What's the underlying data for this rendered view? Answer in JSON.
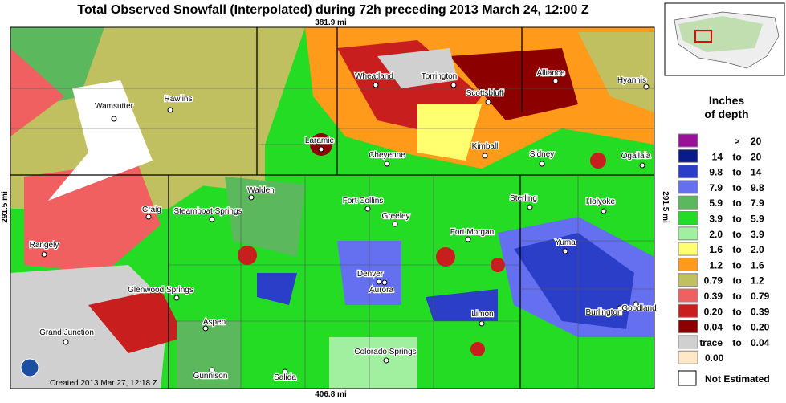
{
  "header": {
    "title": "Total Observed Snowfall (Interpolated) during 72h preceding 2013 March 24, 12:00 Z"
  },
  "map": {
    "top_scale": "381.9 mi",
    "bottom_scale": "406.8 mi",
    "left_scale": "291.5 mi",
    "right_scale": "291.5 mi",
    "created": "Created 2013 Mar 27, 12:18 Z",
    "cities": [
      "Wamsutter",
      "Rawlins",
      "Wheatland",
      "Torrington",
      "Alliance",
      "Hyannis",
      "Scottsbluff",
      "Laramie",
      "Cheyenne",
      "Kimball",
      "Sidney",
      "Ogallala",
      "Walden",
      "Fort Collins",
      "Craig",
      "Steamboat Springs",
      "Sterling",
      "Holyoke",
      "Greeley",
      "Fort Morgan",
      "Yuma",
      "Rangely",
      "Denver",
      "Aurora",
      "Glenwood Springs",
      "Burlington",
      "Goodland",
      "Limon",
      "Aspen",
      "Grand Junction",
      "Colorado Springs",
      "Gunnison",
      "Salida"
    ]
  },
  "legend": {
    "title": [
      "Inches",
      "of depth"
    ],
    "rows": [
      {
        "cells": [
          ">",
          "20"
        ],
        "color": "#9b109b"
      },
      {
        "cells": [
          "14",
          "to",
          "20"
        ],
        "color": "#0a1a8c"
      },
      {
        "cells": [
          "9.8",
          "to",
          "14"
        ],
        "color": "#2a3ec8"
      },
      {
        "cells": [
          "7.9",
          "to",
          "9.8"
        ],
        "color": "#6470f0"
      },
      {
        "cells": [
          "5.9",
          "to",
          "7.9"
        ],
        "color": "#5cb85c"
      },
      {
        "cells": [
          "3.9",
          "to",
          "5.9"
        ],
        "color": "#24dc24"
      },
      {
        "cells": [
          "2.0",
          "to",
          "3.9"
        ],
        "color": "#a0f0a0"
      },
      {
        "cells": [
          "1.6",
          "to",
          "2.0"
        ],
        "color": "#ffff70"
      },
      {
        "cells": [
          "1.2",
          "to",
          "1.6"
        ],
        "color": "#ff9a1a"
      },
      {
        "cells": [
          "0.79",
          "to",
          "1.2"
        ],
        "color": "#c0c060"
      },
      {
        "cells": [
          "0.39",
          "to",
          "0.79"
        ],
        "color": "#f06060"
      },
      {
        "cells": [
          "0.20",
          "to",
          "0.39"
        ],
        "color": "#c81e1e"
      },
      {
        "cells": [
          "0.04",
          "to",
          "0.20"
        ],
        "color": "#8c0000"
      },
      {
        "cells": [
          "trace",
          "to",
          "0.04"
        ],
        "color": "#d0d0d0"
      },
      {
        "cells": [
          "0.00"
        ],
        "color": "#ffe8c8"
      }
    ],
    "not_estimated": "Not Estimated"
  }
}
